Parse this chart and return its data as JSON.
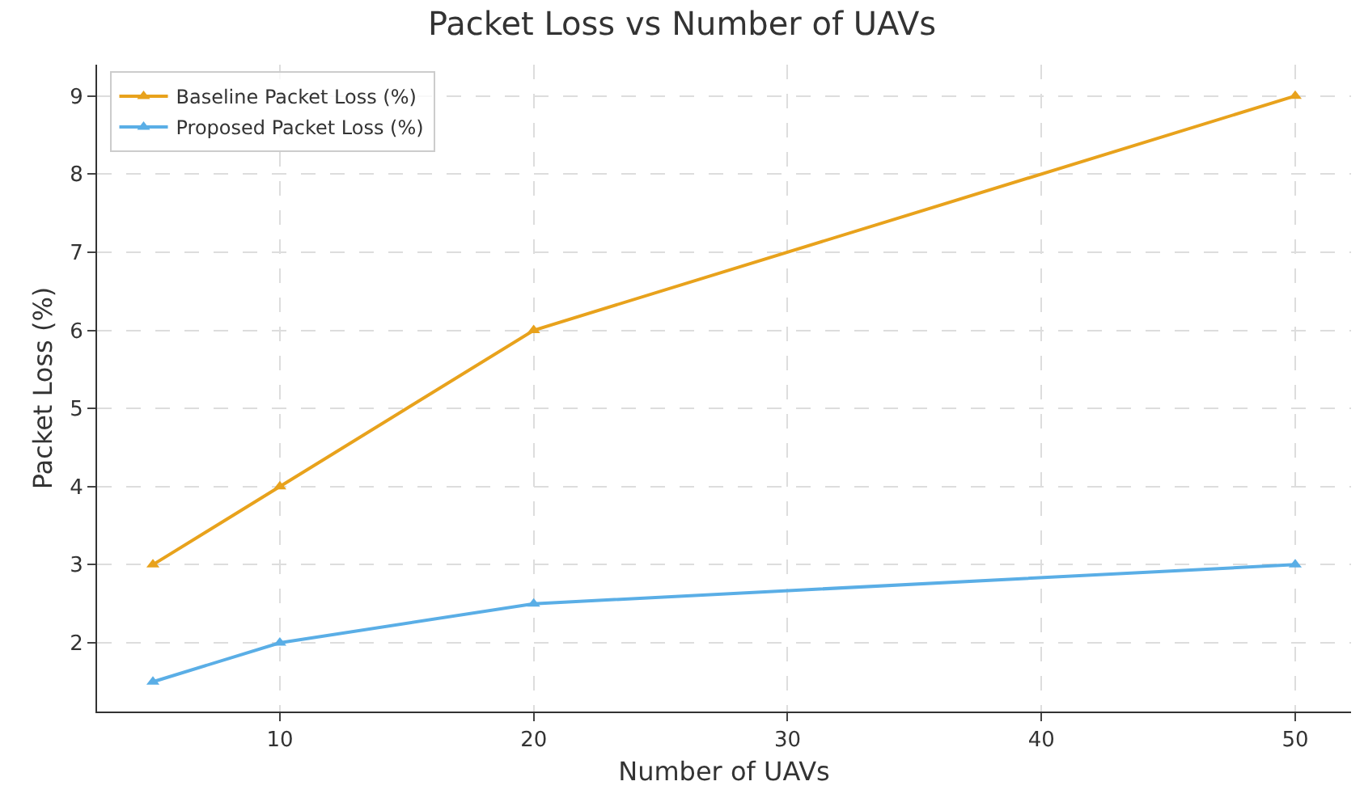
{
  "chart_data": {
    "type": "line",
    "title": "Packet Loss vs Number of UAVs",
    "xlabel": "Number of UAVs",
    "ylabel": "Packet Loss (%)",
    "x": [
      5,
      10,
      20,
      50
    ],
    "series": [
      {
        "name": "Baseline Packet Loss (%)",
        "color": "#e8a21c",
        "values": [
          3,
          4,
          6,
          9
        ]
      },
      {
        "name": "Proposed Packet Loss (%)",
        "color": "#5aaee6",
        "values": [
          1.5,
          2,
          2.5,
          3
        ]
      }
    ],
    "xlim": [
      2.8,
      52.2
    ],
    "xticks": [
      10,
      20,
      30,
      40,
      50
    ],
    "ylim": [
      1.12,
      9.4
    ],
    "yticks": [
      2,
      3,
      4,
      5,
      6,
      7,
      8,
      9
    ],
    "grid": true,
    "legend": "top left",
    "marker": "triangle",
    "line_style": "solid"
  }
}
